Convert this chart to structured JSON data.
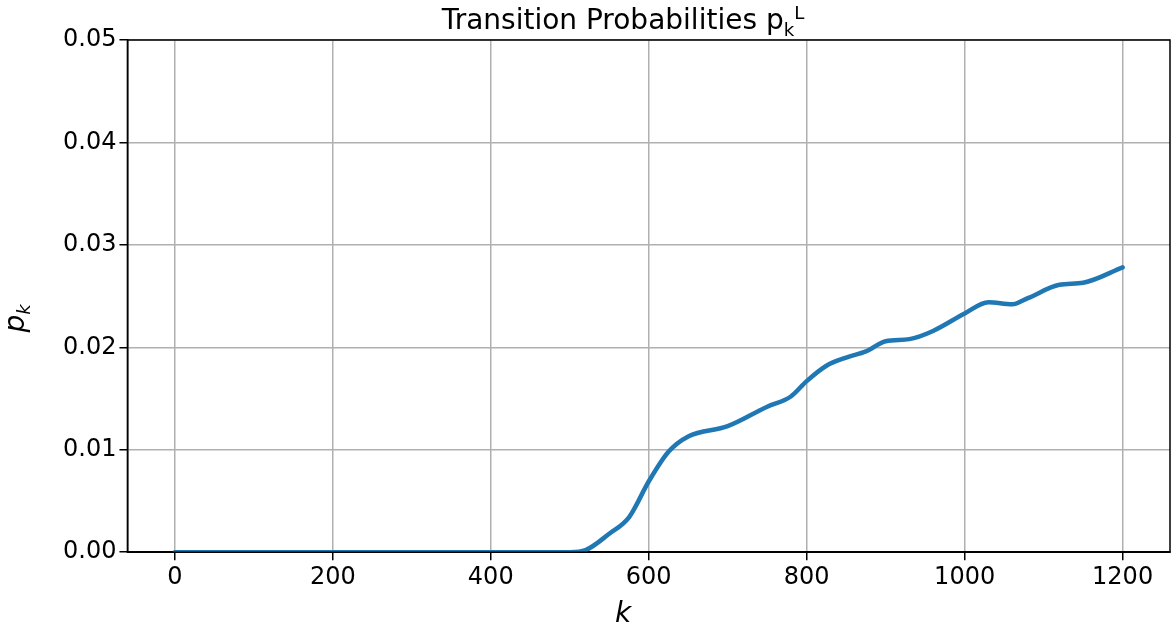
{
  "chart_data": {
    "type": "line",
    "title": "Transition Probabilities p$_{k}$$^{L}$",
    "xlabel": "k",
    "ylabel": "p$_{k}$",
    "series": [
      {
        "color": "#1f77b4",
        "x": [
          0,
          100,
          200,
          300,
          400,
          500,
          520,
          550,
          575,
          600,
          625,
          650,
          700,
          750,
          780,
          800,
          825,
          850,
          875,
          900,
          930,
          960,
          1000,
          1030,
          1060,
          1080,
          1120,
          1150,
          1200
        ],
        "values": [
          0,
          0,
          0,
          0,
          0,
          0,
          0.0002,
          0.0018,
          0.0034,
          0.0069,
          0.0098,
          0.0113,
          0.0123,
          0.0142,
          0.0152,
          0.0167,
          0.0182,
          0.019,
          0.0196,
          0.0206,
          0.0208,
          0.0216,
          0.0233,
          0.0244,
          0.0242,
          0.0248,
          0.0261,
          0.0263,
          0.0278
        ]
      }
    ],
    "xlim": [
      -60,
      1260
    ],
    "xticks": [
      0,
      200,
      400,
      600,
      800,
      1000,
      1200
    ],
    "ylim": [
      0,
      0.05
    ],
    "yticks": [
      {
        "value": 0,
        "label": "0.00"
      },
      {
        "value": 0.01,
        "label": "0.01"
      },
      {
        "value": 0.02,
        "label": "0.02"
      },
      {
        "value": 0.03,
        "label": "0.03"
      },
      {
        "value": 0.04,
        "label": "0.04"
      },
      {
        "value": 0.05,
        "label": "0.05"
      }
    ],
    "grid": true,
    "legend": false,
    "marker": "none",
    "line_style": "solid"
  }
}
